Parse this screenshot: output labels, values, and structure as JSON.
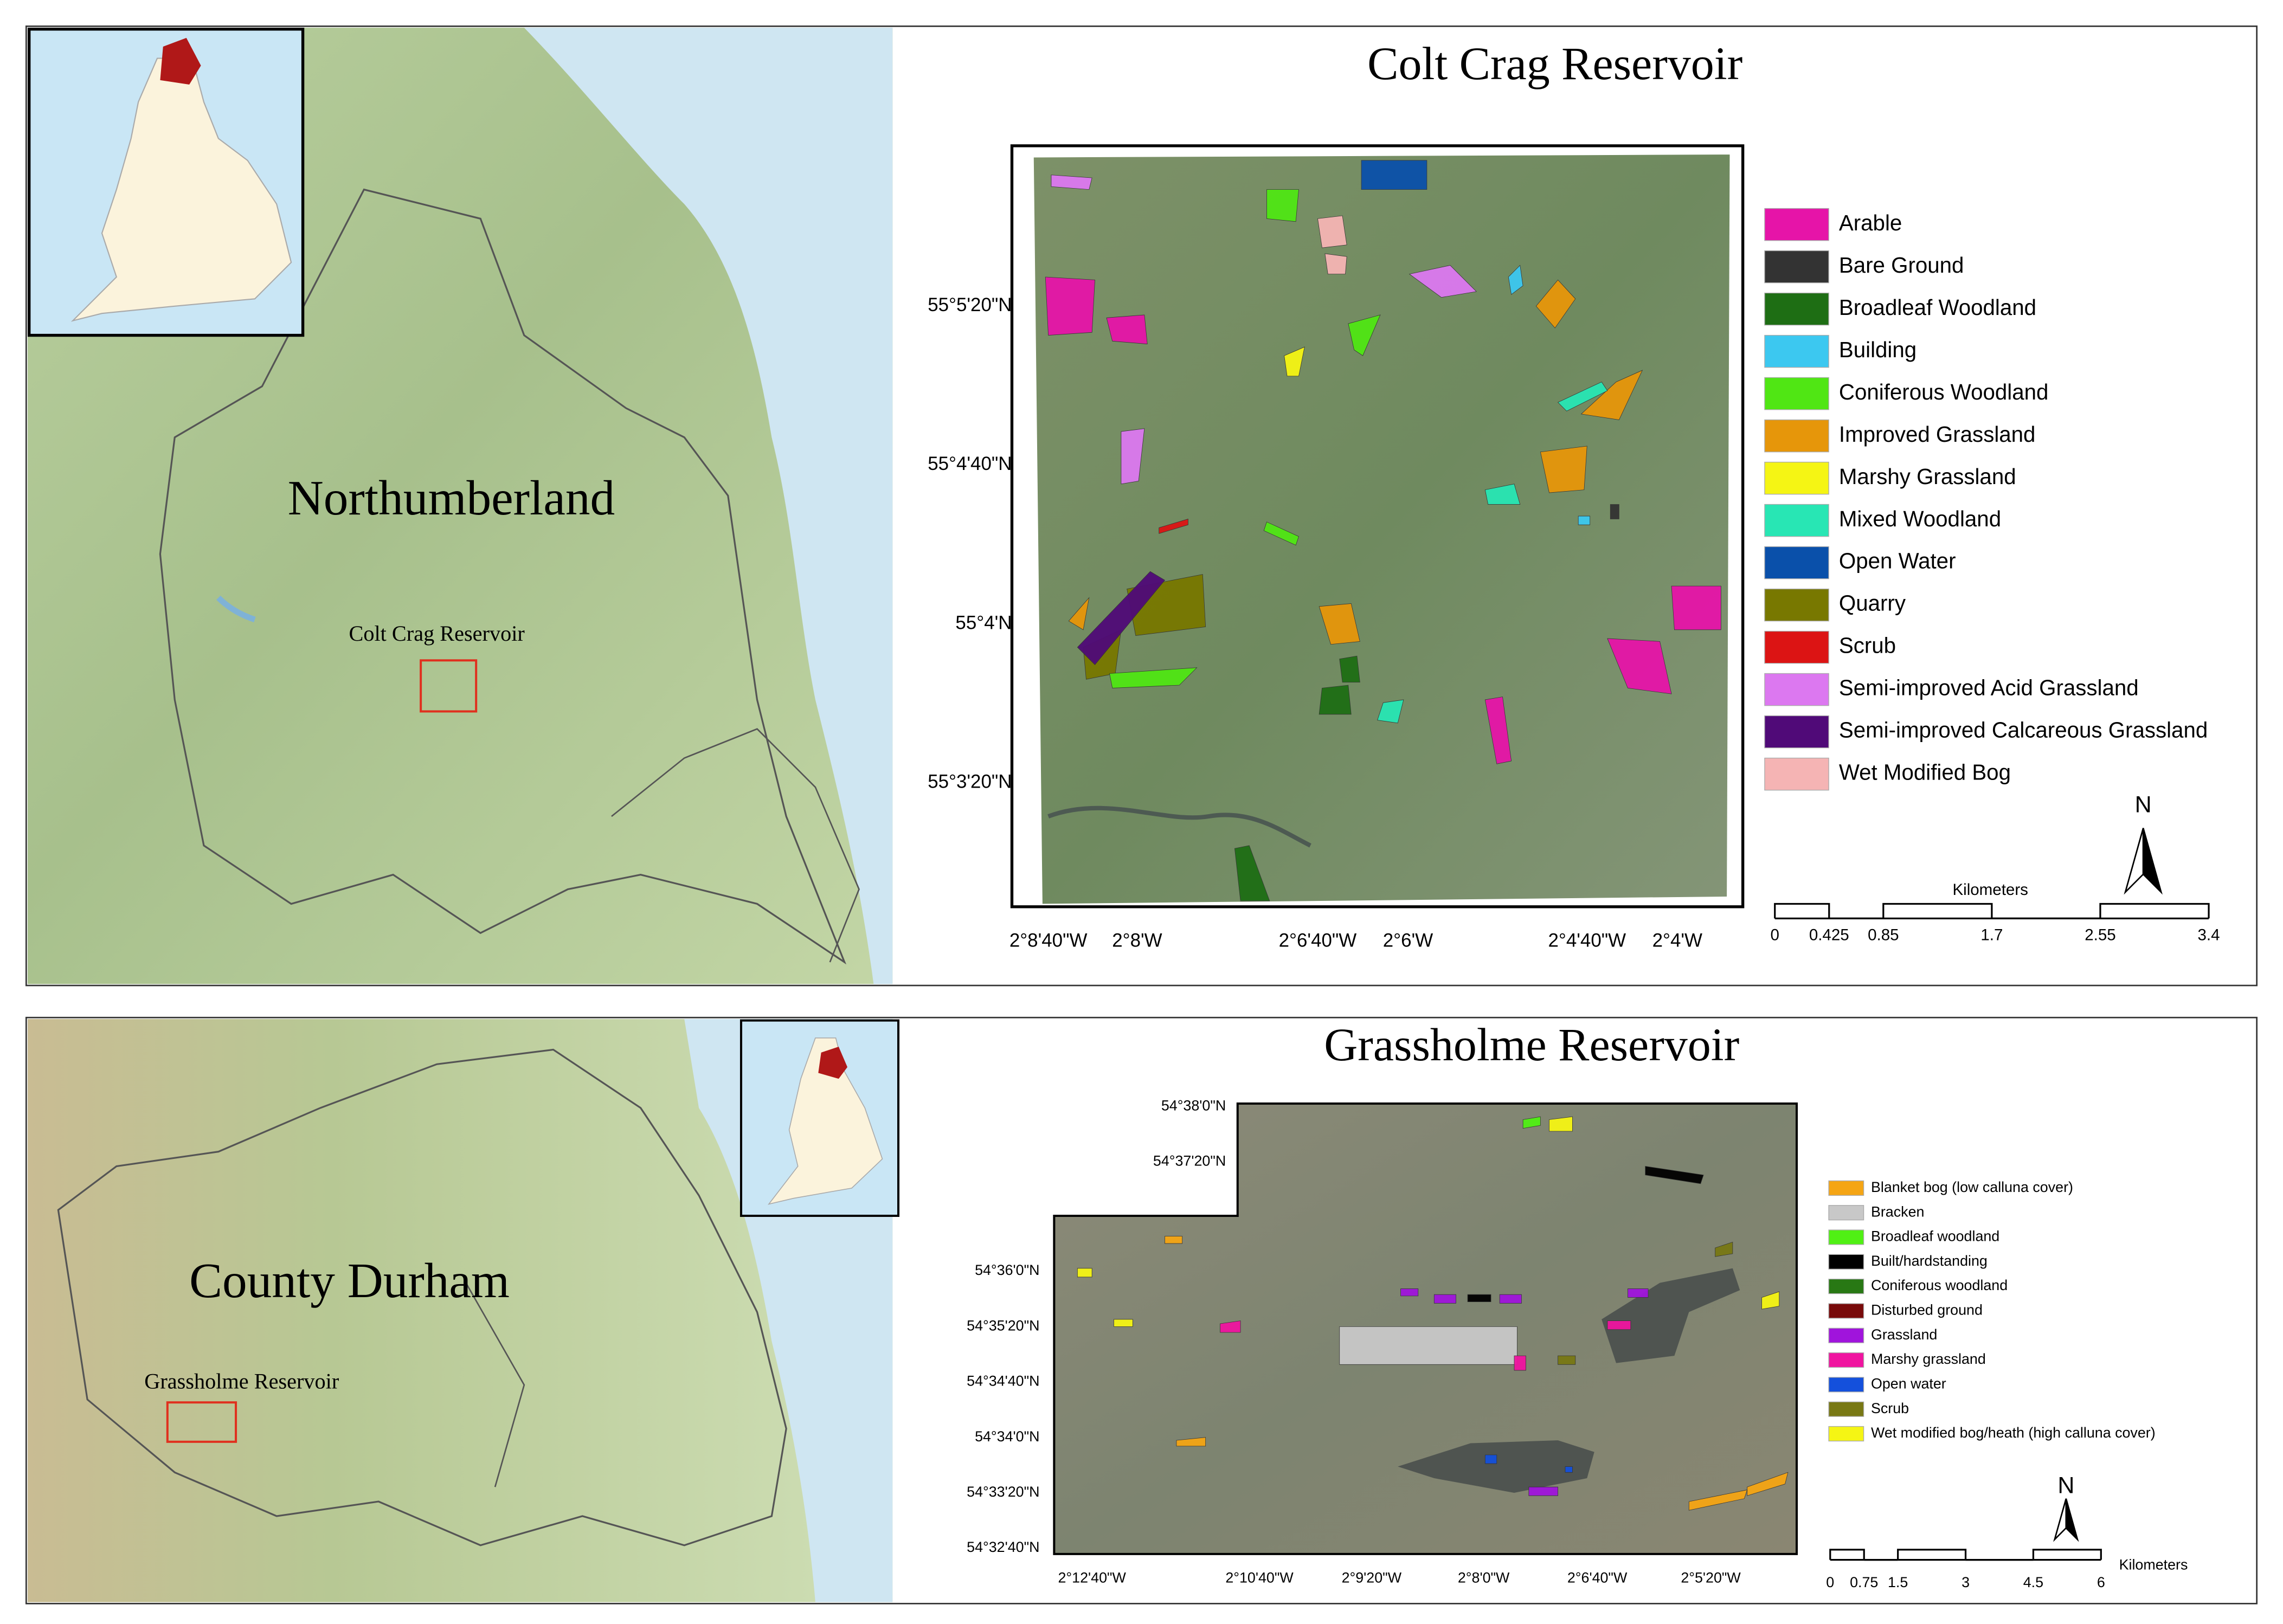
{
  "panels": [
    {
      "title": "Colt Crag Reservoir",
      "region_label": "Northumberland",
      "site_label": "Colt Crag Reservoir",
      "latitude_labels": [
        "55°5'20\"N",
        "55°4'40\"N",
        "55°4'N",
        "55°3'20\"N"
      ],
      "longitude_labels": [
        "2°8'40\"W",
        "2°8'W",
        "2°6'40\"W",
        "2°6'W",
        "2°4'40\"W",
        "2°4'W"
      ],
      "legend": [
        {
          "label": "Arable",
          "color": "#e614a8"
        },
        {
          "label": "Bare Ground",
          "color": "#333333"
        },
        {
          "label": "Broadleaf Woodland",
          "color": "#1e6e14"
        },
        {
          "label": "Building",
          "color": "#3cc8f0"
        },
        {
          "label": "Coniferous Woodland",
          "color": "#50e614"
        },
        {
          "label": "Improved Grassland",
          "color": "#e6960a"
        },
        {
          "label": "Marshy Grassland",
          "color": "#f5f514"
        },
        {
          "label": "Mixed Woodland",
          "color": "#28e6b4"
        },
        {
          "label": "Open Water",
          "color": "#0a50aa"
        },
        {
          "label": "Quarry",
          "color": "#787800"
        },
        {
          "label": "Scrub",
          "color": "#dc1414"
        },
        {
          "label": "Semi-improved Acid Grassland",
          "color": "#dc78f0"
        },
        {
          "label": "Semi-improved Calcareous Grassland",
          "color": "#500a78"
        },
        {
          "label": "Wet Modified Bog",
          "color": "#f5b4b4"
        }
      ],
      "scale_bar": {
        "unit": "Kilometers",
        "ticks": [
          "0",
          "0.425",
          "0.85",
          "1.7",
          "2.55",
          "3.4"
        ]
      },
      "north_label": "N"
    },
    {
      "title": "Grassholme Reservoir",
      "region_label": "County Durham",
      "site_label": "Grassholme Reservoir",
      "latitude_labels": [
        "54°38'0\"N",
        "54°37'20\"N",
        "54°36'0\"N",
        "54°35'20\"N",
        "54°34'40\"N",
        "54°34'0\"N",
        "54°33'20\"N",
        "54°32'40\"N"
      ],
      "longitude_labels": [
        "2°12'40\"W",
        "2°10'40\"W",
        "2°9'20\"W",
        "2°8'0\"W",
        "2°6'40\"W",
        "2°5'20\"W"
      ],
      "legend": [
        {
          "label": "Blanket bog (low calluna cover)",
          "color": "#f5a514"
        },
        {
          "label": "Bracken",
          "color": "#c8c8c8"
        },
        {
          "label": "Broadleaf woodland",
          "color": "#50f014"
        },
        {
          "label": "Built/hardstanding",
          "color": "#000000"
        },
        {
          "label": "Coniferous woodland",
          "color": "#287814"
        },
        {
          "label": "Disturbed ground",
          "color": "#780a0a"
        },
        {
          "label": "Grassland",
          "color": "#a014dc"
        },
        {
          "label": "Marshy grassland",
          "color": "#f014a0"
        },
        {
          "label": "Open water",
          "color": "#1450dc"
        },
        {
          "label": "Scrub",
          "color": "#787814"
        },
        {
          "label": "Wet modified bog/heath (high calluna cover)",
          "color": "#f5f514"
        }
      ],
      "scale_bar": {
        "unit": "Kilometers",
        "ticks": [
          "0",
          "0.75",
          "1.5",
          "3",
          "4.5",
          "6"
        ]
      },
      "north_label": "N"
    }
  ]
}
